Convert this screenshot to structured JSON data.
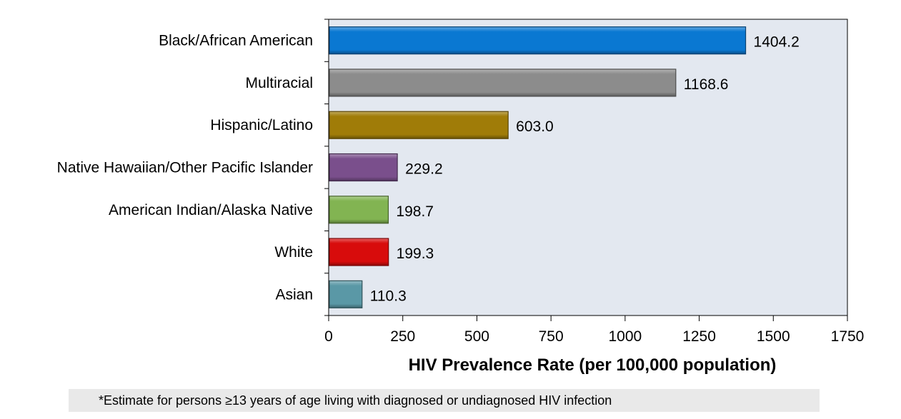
{
  "chart_data": {
    "type": "bar",
    "orientation": "horizontal",
    "categories": [
      "Black/African American",
      "Multiracial",
      "Hispanic/Latino",
      "Native Hawaiian/Other Pacific Islander",
      "American Indian/Alaska Native",
      "White",
      "Asian"
    ],
    "values": [
      1404.2,
      1168.6,
      603.0,
      229.2,
      198.7,
      199.3,
      110.3
    ],
    "value_labels": [
      "1404.2",
      "1168.6",
      "603.0",
      "229.2",
      "198.7",
      "199.3",
      "110.3"
    ],
    "colors": [
      "#0a78d2",
      "#8c8c8c",
      "#a07c08",
      "#7a4f8c",
      "#82b452",
      "#d80c0c",
      "#5a98a6"
    ],
    "xlabel": "HIV Prevalence Rate  (per 100,000 population)",
    "xlim": [
      0,
      1750
    ],
    "xticks": [
      0,
      250,
      500,
      750,
      1000,
      1250,
      1500,
      1750
    ],
    "plot_background": "#e3e8f0",
    "grid": false
  },
  "footnote": "*Estimate for persons ≥13 years of age living with diagnosed or undiagnosed HIV infection"
}
